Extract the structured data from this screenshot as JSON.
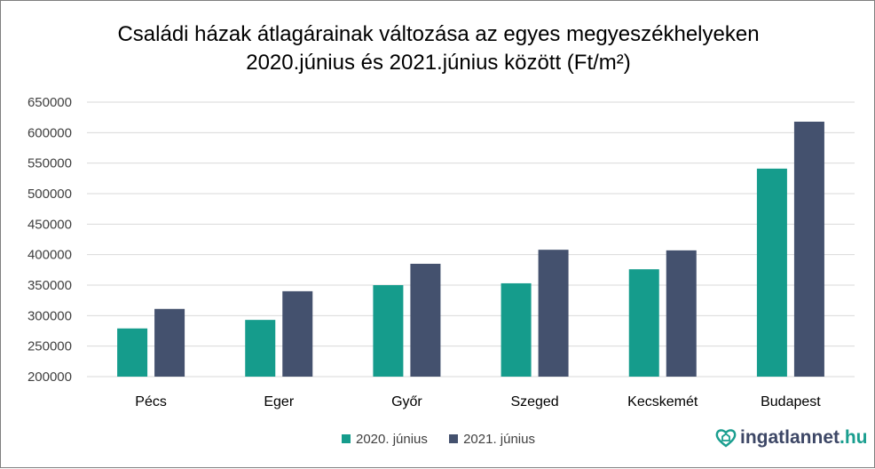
{
  "chart_data": {
    "type": "bar",
    "title_line1": "Családi házak átlagárainak változása az egyes megyeszékhelyeken",
    "title_line2": "2020.június és 2021.június között (Ft/m²)",
    "categories": [
      "Pécs",
      "Eger",
      "Győr",
      "Szeged",
      "Kecskemét",
      "Budapest"
    ],
    "series": [
      {
        "name": "2020. június",
        "color": "#159c8c",
        "values": [
          279000,
          293000,
          350000,
          353000,
          376000,
          541000
        ]
      },
      {
        "name": "2021. június",
        "color": "#44516e",
        "values": [
          311000,
          340000,
          385000,
          408000,
          407000,
          618000
        ]
      }
    ],
    "ylim": [
      200000,
      650000
    ],
    "yticks": [
      200000,
      250000,
      300000,
      350000,
      400000,
      450000,
      500000,
      550000,
      600000,
      650000
    ],
    "grid": true,
    "legend": "bottom"
  },
  "logo": {
    "name": "ingatlannet",
    "suffix": ".hu"
  }
}
